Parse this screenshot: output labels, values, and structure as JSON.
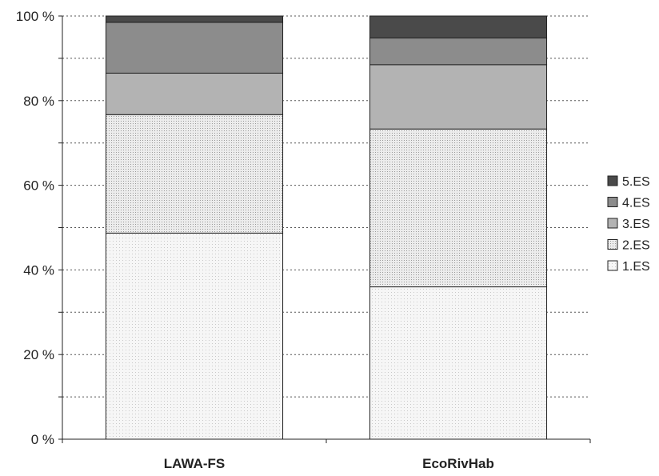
{
  "chart_data": {
    "type": "bar",
    "stacked": true,
    "percent_stacked": true,
    "categories": [
      "LAWA-FS",
      "EcoRivHab"
    ],
    "series": [
      {
        "name": "1.ES",
        "values": [
          48.7,
          36.0
        ],
        "color": "#f4f4f4",
        "pattern": "sparse-dots"
      },
      {
        "name": "2.ES",
        "values": [
          28.0,
          37.3
        ],
        "color": "#e6e6e6",
        "pattern": "dense-dots"
      },
      {
        "name": "3.ES",
        "values": [
          9.8,
          15.2
        ],
        "color": "#b3b3b3"
      },
      {
        "name": "4.ES",
        "values": [
          12.0,
          6.3
        ],
        "color": "#8c8c8c"
      },
      {
        "name": "5.ES",
        "values": [
          1.5,
          5.2
        ],
        "color": "#4a4a4a"
      }
    ],
    "ylim": [
      0,
      100
    ],
    "y_ticks": [
      0,
      20,
      40,
      60,
      80,
      100
    ],
    "y_tick_labels": [
      "0 %",
      "20 %",
      "40 %",
      "60 %",
      "80 %",
      "100 %"
    ],
    "grid": "horizontal dotted",
    "legend_position": "right",
    "legend_order": [
      "5.ES",
      "4.ES",
      "3.ES",
      "2.ES",
      "1.ES"
    ]
  }
}
